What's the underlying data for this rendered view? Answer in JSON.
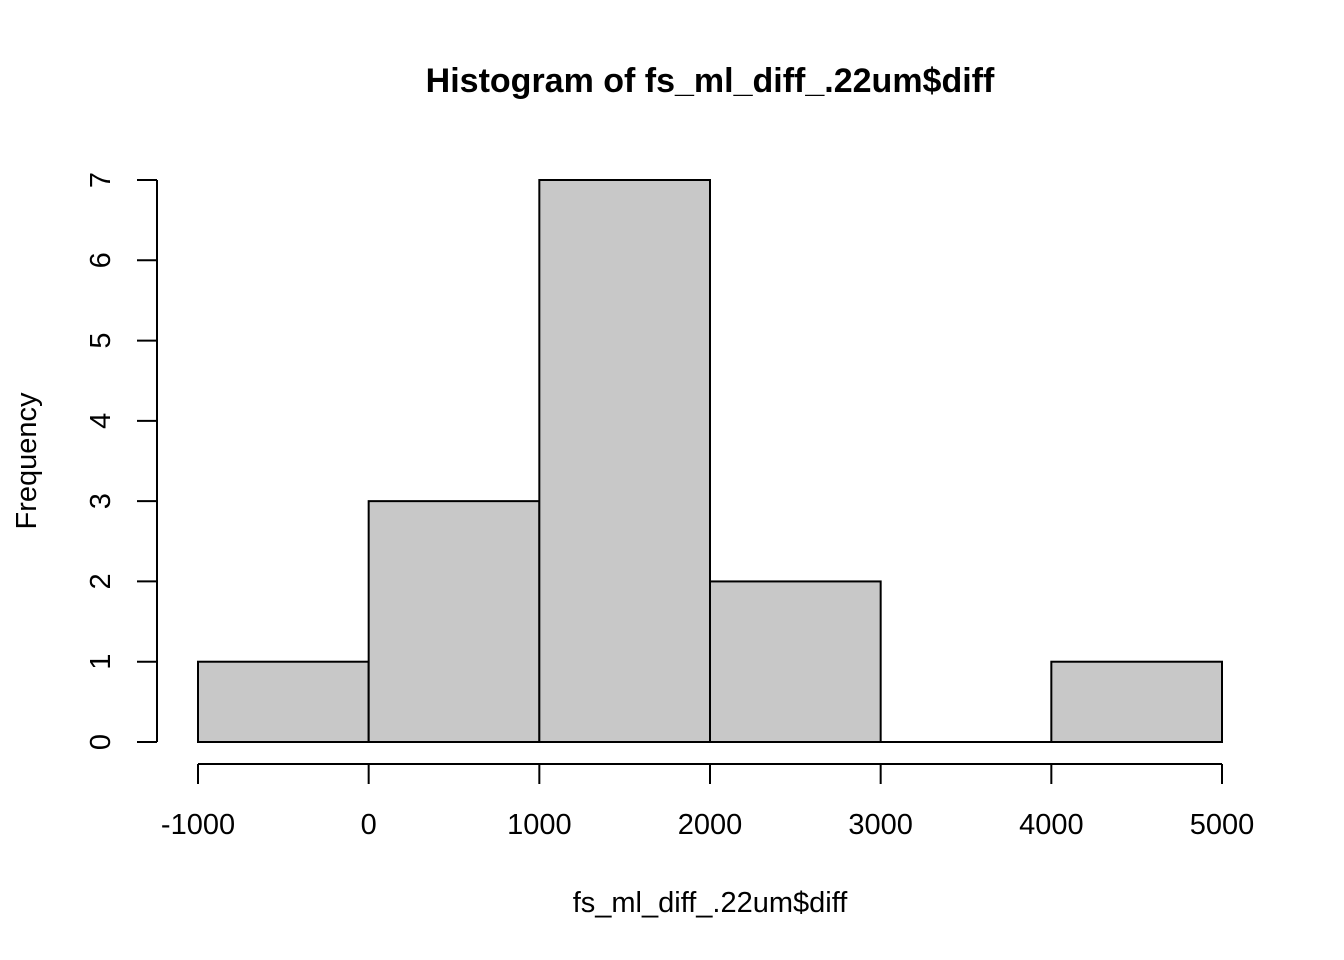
{
  "chart_data": {
    "type": "bar",
    "title": "Histogram of fs_ml_diff_.22um$diff",
    "xlabel": "fs_ml_diff_.22um$diff",
    "ylabel": "Frequency",
    "bins": [
      {
        "start": -1000,
        "end": 0,
        "count": 1
      },
      {
        "start": 0,
        "end": 1000,
        "count": 3
      },
      {
        "start": 1000,
        "end": 2000,
        "count": 7
      },
      {
        "start": 2000,
        "end": 3000,
        "count": 2
      },
      {
        "start": 3000,
        "end": 4000,
        "count": 0
      },
      {
        "start": 4000,
        "end": 5000,
        "count": 1
      }
    ],
    "xlim": [
      -1000,
      5000
    ],
    "ylim": [
      0,
      7
    ],
    "x_ticks": [
      -1000,
      0,
      1000,
      2000,
      3000,
      4000,
      5000
    ],
    "x_tick_labels": [
      "-1000",
      "0",
      "1000",
      "2000",
      "3000",
      "4000",
      "5000"
    ],
    "y_ticks": [
      0,
      1,
      2,
      3,
      4,
      5,
      6,
      7
    ],
    "y_tick_labels": [
      "0",
      "1",
      "2",
      "3",
      "4",
      "5",
      "6",
      "7"
    ],
    "grid": false,
    "bar_fill": "#c8c8c8",
    "bar_stroke": "#000000"
  }
}
